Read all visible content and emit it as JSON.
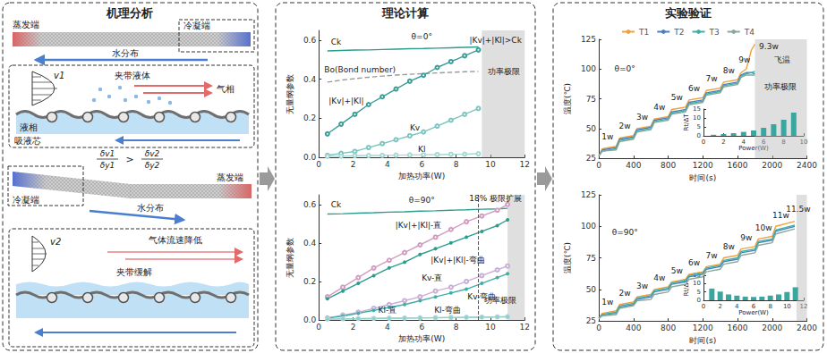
{
  "panels": {
    "left_title": "机理分析",
    "middle_title": "理论计算",
    "right_title": "实验验证"
  },
  "diagram": {
    "top": {
      "evaporator": "蒸发端",
      "condenser": "冷凝端",
      "water": "水分布",
      "velocity": "v1",
      "entrained": "夹带液体",
      "vapor": "气相",
      "liquid": "液相",
      "wick": "吸液芯"
    },
    "relation": {
      "left_num": "δv1",
      "left_den": "δy1",
      "operator": ">",
      "right_num": "δv2",
      "right_den": "δy2"
    },
    "bottom": {
      "condenser": "冷凝端",
      "evaporator": "蒸发端",
      "water": "水分布",
      "velocity": "v2",
      "gas_slowdown": "气体流速降低",
      "entrainment_relief": "夹带缓解"
    }
  },
  "chart_data": [
    {
      "type": "line",
      "xlabel": "加热功率(W)",
      "ylabel": "无量纲参数",
      "xlim": [
        0,
        12
      ],
      "ylim": [
        0,
        0.65
      ],
      "xticks": [
        0,
        2,
        4,
        6,
        8,
        10,
        12
      ],
      "yticks": [
        {
          "value": 0,
          "label": "0.0"
        },
        0.2,
        0.4,
        0.6
      ],
      "grid": false,
      "x": [
        0.5,
        1.3,
        2.1,
        2.9,
        3.7,
        4.5,
        5.3,
        6.1,
        6.9,
        7.7,
        8.5,
        9.3
      ],
      "series": [
        {
          "name": "Ck",
          "color": "#2a9d8f",
          "marker": "none",
          "line_style": "solid",
          "values": [
            0.545,
            0.547,
            0.549,
            0.55,
            0.552,
            0.554,
            0.556,
            0.557,
            0.559,
            0.561,
            0.563,
            0.565
          ]
        },
        {
          "name": "Bo(Bond number)",
          "color": "#9a9a9a",
          "marker": "none",
          "line_style": "dashed",
          "values": [
            0.385,
            0.395,
            0.403,
            0.41,
            0.416,
            0.421,
            0.425,
            0.429,
            0.432,
            0.435,
            0.438,
            0.44
          ]
        },
        {
          "name": "|Kv|+|Kl|",
          "color": "#3a9e98",
          "marker": "hollow_circle",
          "line_style": "solid",
          "values": [
            0.12,
            0.17,
            0.22,
            0.27,
            0.31,
            0.35,
            0.39,
            0.42,
            0.46,
            0.49,
            0.52,
            0.55
          ]
        },
        {
          "name": "Kv",
          "color": "#7cc5c0",
          "marker": "hollow_circle",
          "line_style": "solid",
          "values": [
            0.01,
            0.02,
            0.03,
            0.05,
            0.07,
            0.09,
            0.11,
            0.13,
            0.16,
            0.19,
            0.22,
            0.25
          ]
        },
        {
          "name": "Kl",
          "color": "#a6d8d4",
          "marker": "hollow_circle",
          "line_style": "solid",
          "values": [
            0.005,
            0.006,
            0.008,
            0.009,
            0.01,
            0.011,
            0.012,
            0.013,
            0.014,
            0.015,
            0.016,
            0.018
          ]
        }
      ],
      "shaded_from": 9.5,
      "annotations": [
        {
          "text": "θ=0°",
          "x": 6,
          "y": 0.62
        },
        {
          "text": "Ck",
          "x": 1,
          "y": 0.59
        },
        {
          "text": "Bo(Bond number)",
          "x": 2.4,
          "y": 0.45
        },
        {
          "text": "|Kv|+|Kl|",
          "x": 1.6,
          "y": 0.29
        },
        {
          "text": "Kv",
          "x": 5.6,
          "y": 0.15
        },
        {
          "text": "Kl",
          "x": 6,
          "y": 0.04
        },
        {
          "text": "|Kv|+|Kl|>Ck",
          "x": 10.3,
          "y": 0.6
        },
        {
          "text": "功率极限",
          "x": 10.8,
          "y": 0.44
        }
      ]
    },
    {
      "type": "line",
      "xlabel": "加热功率(W)",
      "ylabel": "无量纲参数",
      "xlim": [
        0,
        12
      ],
      "ylim": [
        0,
        0.65
      ],
      "xticks": [
        0,
        2,
        4,
        6,
        8,
        10,
        12
      ],
      "yticks": [
        {
          "value": 0,
          "label": "0.0"
        },
        0.2,
        0.4,
        0.6
      ],
      "grid": false,
      "x": [
        0.5,
        1.4,
        2.3,
        3.2,
        4.1,
        5.0,
        5.9,
        6.8,
        7.7,
        8.6,
        9.5,
        10.4,
        11.0
      ],
      "series": [
        {
          "name": "Ck",
          "color": "#2a9d8f",
          "marker": "none",
          "line_style": "solid",
          "values": [
            0.55,
            0.552,
            0.555,
            0.557,
            0.56,
            0.562,
            0.565,
            0.567,
            0.57,
            0.572,
            0.575,
            0.577,
            0.58
          ]
        },
        {
          "name": "|Kv|+|Kl|-直",
          "color": "#d29cc0",
          "marker": "hollow_circle",
          "line_style": "solid",
          "values": [
            0.12,
            0.17,
            0.22,
            0.27,
            0.31,
            0.35,
            0.39,
            0.43,
            0.47,
            0.51,
            0.54,
            0.57,
            0.6
          ]
        },
        {
          "name": "|Kv|+|Kl|-弯曲",
          "color": "#2a9d8f",
          "marker": "circle",
          "line_style": "solid",
          "values": [
            0.11,
            0.15,
            0.19,
            0.23,
            0.27,
            0.3,
            0.34,
            0.37,
            0.4,
            0.43,
            0.46,
            0.49,
            0.52
          ]
        },
        {
          "name": "Kv-直",
          "color": "#c9aed8",
          "marker": "hollow_circle",
          "line_style": "solid",
          "values": [
            0.01,
            0.025,
            0.04,
            0.06,
            0.08,
            0.1,
            0.12,
            0.15,
            0.17,
            0.2,
            0.23,
            0.26,
            0.28
          ]
        },
        {
          "name": "Kv-弯曲",
          "color": "#3fb0a8",
          "marker": "circle",
          "line_style": "solid",
          "values": [
            0.01,
            0.02,
            0.035,
            0.05,
            0.065,
            0.08,
            0.1,
            0.12,
            0.14,
            0.16,
            0.19,
            0.22,
            0.24
          ]
        },
        {
          "name": "Kl-直",
          "color": "#b8d8e0",
          "marker": "hollow_circle",
          "line_style": "solid",
          "values": [
            0.005,
            0.006,
            0.007,
            0.008,
            0.009,
            0.01,
            0.011,
            0.012,
            0.013,
            0.014,
            0.015,
            0.016,
            0.017
          ]
        },
        {
          "name": "Kl-弯曲",
          "color": "#8fd0c8",
          "marker": "circle",
          "line_style": "solid",
          "values": [
            0.004,
            0.005,
            0.006,
            0.007,
            0.008,
            0.009,
            0.01,
            0.011,
            0.012,
            0.013,
            0.014,
            0.015,
            0.016
          ]
        }
      ],
      "shaded_from": 11,
      "vline": 9.3,
      "annotations": [
        {
          "text": "θ=90°",
          "x": 6,
          "y": 0.62
        },
        {
          "text": "Ck",
          "x": 1,
          "y": 0.6
        },
        {
          "text": "|Kv|+|Kl|-直",
          "x": 5.8,
          "y": 0.49
        },
        {
          "text": "|Kv|+|Kl|-弯曲",
          "x": 8.1,
          "y": 0.31
        },
        {
          "text": "Kv-直",
          "x": 6.6,
          "y": 0.22
        },
        {
          "text": "Kv-弯曲",
          "x": 9.5,
          "y": 0.12
        },
        {
          "text": "Kl-直",
          "x": 4,
          "y": 0.05
        },
        {
          "text": "Kl-弯曲",
          "x": 7.5,
          "y": 0.05
        },
        {
          "text": "18% 极限扩展",
          "x": 10.3,
          "y": 0.63
        },
        {
          "text": "功率极限",
          "x": 10.6,
          "y": 0.1
        }
      ]
    },
    {
      "type": "line",
      "xlabel": "时间(s)",
      "ylabel": "温度(℃)",
      "xlim": [
        0,
        2400
      ],
      "ylim": [
        25,
        125
      ],
      "xticks": [
        0,
        400,
        800,
        1200,
        1600,
        2000,
        2400
      ],
      "yticks": [
        25,
        50,
        75,
        100,
        125
      ],
      "grid": false,
      "legend": "top",
      "x": [
        0,
        40,
        200,
        240,
        400,
        440,
        600,
        640,
        800,
        840,
        1000,
        1040,
        1200,
        1240,
        1400,
        1440,
        1600,
        1640,
        1700,
        1760,
        1800
      ],
      "series": [
        {
          "name": "T1",
          "color": "#f0a040",
          "marker": "none",
          "line_style": "solid",
          "values": [
            27,
            33,
            35,
            42,
            44,
            50,
            52,
            58,
            60,
            66,
            68,
            74,
            76,
            82,
            84,
            89,
            91,
            97,
            100,
            116,
            121
          ]
        },
        {
          "name": "T2",
          "color": "#4a7fc1",
          "marker": "none",
          "line_style": "solid",
          "values": [
            27,
            32,
            34,
            41,
            43,
            49,
            51,
            57,
            59,
            64,
            66,
            72,
            74,
            80,
            82,
            87,
            89,
            95,
            97,
            97,
            96
          ]
        },
        {
          "name": "T3",
          "color": "#3fb0a8",
          "marker": "none",
          "line_style": "solid",
          "values": [
            27,
            31,
            33,
            40,
            42,
            48,
            50,
            56,
            58,
            63,
            65,
            71,
            73,
            79,
            81,
            86,
            88,
            94,
            96,
            97,
            98
          ]
        },
        {
          "name": "T4",
          "color": "#8aa89a",
          "marker": "none",
          "line_style": "solid",
          "values": [
            27,
            31,
            32,
            39,
            41,
            47,
            49,
            55,
            57,
            62,
            64,
            70,
            72,
            78,
            80,
            85,
            87,
            93,
            95,
            95,
            95
          ]
        }
      ],
      "shaded_from": 1800,
      "annotations": [
        {
          "text": "θ=0°",
          "x": 300,
          "y": 100
        },
        {
          "text": "1w",
          "x": 100,
          "y": 43
        },
        {
          "text": "2w",
          "x": 300,
          "y": 52
        },
        {
          "text": "3w",
          "x": 500,
          "y": 60
        },
        {
          "text": "4w",
          "x": 700,
          "y": 68
        },
        {
          "text": "5w",
          "x": 900,
          "y": 76
        },
        {
          "text": "6w",
          "x": 1100,
          "y": 84
        },
        {
          "text": "7w",
          "x": 1300,
          "y": 92
        },
        {
          "text": "8w",
          "x": 1500,
          "y": 99
        },
        {
          "text": "9w",
          "x": 1680,
          "y": 108
        },
        {
          "text": "9.3w",
          "x": 1960,
          "y": 119
        },
        {
          "text": "飞温",
          "x": 2120,
          "y": 108
        },
        {
          "text": "功率极限",
          "x": 2100,
          "y": 85
        }
      ],
      "inset": {
        "type": "bar",
        "xlabel": "Power(W)",
        "ylabel": "Rt/ΔT",
        "color": "#3aa6a0",
        "xlim": [
          0,
          10
        ],
        "ylim": [
          0,
          15
        ],
        "xticks": [
          0,
          2,
          4,
          6,
          8,
          10
        ],
        "yticks": [
          0,
          5,
          10,
          15
        ],
        "x": [
          1,
          2,
          3,
          4,
          5,
          6,
          7,
          8,
          9
        ],
        "values": [
          0.6,
          1,
          1.5,
          2.2,
          3,
          4.5,
          6.5,
          9,
          13
        ]
      }
    },
    {
      "type": "line",
      "xlabel": "时间(s)",
      "ylabel": "温度(℃)",
      "xlim": [
        0,
        2400
      ],
      "ylim": [
        25,
        125
      ],
      "xticks": [
        0,
        400,
        800,
        1200,
        1600,
        2000,
        2400
      ],
      "yticks": [
        25,
        50,
        75,
        100,
        125
      ],
      "grid": false,
      "x": [
        0,
        40,
        200,
        240,
        400,
        440,
        600,
        640,
        800,
        840,
        1000,
        1040,
        1200,
        1240,
        1400,
        1440,
        1600,
        1640,
        1800,
        1840,
        2000,
        2040,
        2260
      ],
      "series": [
        {
          "name": "T1",
          "color": "#f0a040",
          "marker": "none",
          "line_style": "solid",
          "values": [
            27,
            31,
            33,
            38,
            40,
            44,
            46,
            50,
            52,
            56,
            58,
            62,
            64,
            68,
            70,
            75,
            77,
            82,
            84,
            90,
            92,
            100,
            104
          ]
        },
        {
          "name": "T2",
          "color": "#4a7fc1",
          "marker": "none",
          "line_style": "solid",
          "values": [
            27,
            30,
            31,
            36,
            38,
            42,
            44,
            48,
            50,
            54,
            56,
            60,
            62,
            66,
            68,
            72,
            74,
            79,
            81,
            87,
            89,
            96,
            100
          ]
        },
        {
          "name": "T3",
          "color": "#3fb0a8",
          "marker": "none",
          "line_style": "solid",
          "values": [
            27,
            30,
            32,
            37,
            39,
            43,
            45,
            49,
            51,
            55,
            57,
            61,
            63,
            67,
            69,
            73,
            75,
            80,
            82,
            88,
            90,
            97,
            101
          ]
        },
        {
          "name": "T4",
          "color": "#8aa89a",
          "marker": "none",
          "line_style": "solid",
          "values": [
            27,
            29,
            30,
            35,
            37,
            41,
            42,
            46,
            48,
            52,
            54,
            58,
            60,
            64,
            66,
            70,
            72,
            77,
            79,
            85,
            87,
            94,
            98
          ]
        }
      ],
      "shaded_from": 2280,
      "annotations": [
        {
          "text": "θ=90°",
          "x": 300,
          "y": 95
        },
        {
          "text": "1w",
          "x": 100,
          "y": 40
        },
        {
          "text": "2w",
          "x": 300,
          "y": 47
        },
        {
          "text": "3w",
          "x": 500,
          "y": 53
        },
        {
          "text": "4w",
          "x": 700,
          "y": 59
        },
        {
          "text": "5w",
          "x": 900,
          "y": 65
        },
        {
          "text": "6w",
          "x": 1100,
          "y": 71
        },
        {
          "text": "7w",
          "x": 1300,
          "y": 77
        },
        {
          "text": "8w",
          "x": 1500,
          "y": 84
        },
        {
          "text": "9w",
          "x": 1700,
          "y": 91
        },
        {
          "text": "10w",
          "x": 1900,
          "y": 99
        },
        {
          "text": "11w",
          "x": 2100,
          "y": 109
        },
        {
          "text": "11.5w",
          "x": 2300,
          "y": 114
        }
      ],
      "inset": {
        "type": "bar",
        "xlabel": "Power(W)",
        "ylabel": "Rt/ΔT",
        "color": "#3aa6a0",
        "xlim": [
          0,
          12
        ],
        "ylim": [
          0,
          15
        ],
        "xticks": [
          0,
          2,
          4,
          6,
          8,
          10,
          12
        ],
        "yticks": [
          0,
          5,
          10,
          15
        ],
        "x": [
          1,
          2,
          3,
          4,
          5,
          6,
          7,
          8,
          9,
          10,
          11
        ],
        "values": [
          7,
          5.2,
          3.5,
          2.8,
          2.2,
          2,
          2.2,
          2.8,
          3.5,
          5,
          7.8
        ]
      }
    }
  ]
}
